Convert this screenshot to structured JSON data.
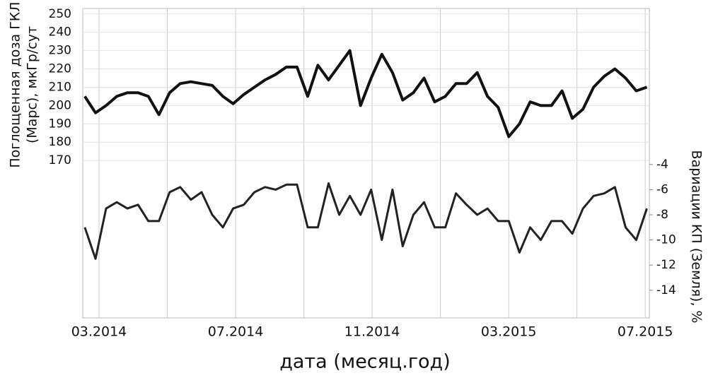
{
  "chart_data": {
    "type": "line",
    "y_label_lines": [
      "Поглощенная доза ГКЛ",
      "(Марс), мкГр/сут"
    ],
    "y2_label": "Вариации КП (Земля), %",
    "x_label": "дата (месяц.год)",
    "x": [
      2014.132,
      2014.158,
      2014.184,
      2014.21,
      2014.236,
      2014.262,
      2014.287,
      2014.313,
      2014.339,
      2014.365,
      2014.391,
      2014.417,
      2014.443,
      2014.469,
      2014.494,
      2014.52,
      2014.546,
      2014.572,
      2014.598,
      2014.624,
      2014.65,
      2014.676,
      2014.701,
      2014.727,
      2014.753,
      2014.779,
      2014.805,
      2014.831,
      2014.857,
      2014.883,
      2014.908,
      2014.934,
      2014.96,
      2014.986,
      2015.012,
      2015.038,
      2015.064,
      2015.09,
      2015.115,
      2015.141,
      2015.167,
      2015.193,
      2015.219,
      2015.245,
      2015.271,
      2015.297,
      2015.322,
      2015.348,
      2015.374,
      2015.4,
      2015.426,
      2015.452,
      2015.478,
      2015.504
    ],
    "series": [
      {
        "color": "#111111",
        "values": [
          205,
          196,
          200,
          205,
          207,
          207,
          205,
          195,
          207,
          212,
          213,
          212,
          211,
          205,
          201,
          206,
          210,
          214,
          217,
          221,
          221,
          205,
          222,
          214,
          222,
          230,
          200,
          215,
          228,
          218,
          203,
          207,
          215,
          202,
          205,
          212,
          212,
          218,
          205,
          199,
          183,
          190,
          202,
          200,
          200,
          208,
          193,
          198,
          210,
          216,
          220,
          215,
          208,
          210
        ]
      },
      {
        "color": "#222222",
        "axis": "y2",
        "values": [
          -9,
          -11.5,
          -7.5,
          -7,
          -7.5,
          -7.2,
          -8.5,
          -8.5,
          -6.2,
          -5.8,
          -6.8,
          -6.2,
          -8,
          -9,
          -7.5,
          -7.2,
          -6.2,
          -5.8,
          -6,
          -5.6,
          -5.6,
          -9,
          -9,
          -5.5,
          -8,
          -6.5,
          -8,
          -6,
          -10,
          -6,
          -10.5,
          -8,
          -7,
          -9,
          -9,
          -6.3,
          -7.2,
          -8,
          -7.5,
          -8.5,
          -8.5,
          -11,
          -9,
          -10,
          -8.5,
          -8.5,
          -9.5,
          -7.5,
          -6.5,
          -6.3,
          -5.8,
          -9,
          -10,
          -7.5
        ]
      }
    ],
    "xlim": [
      2014.127,
      2015.51
    ],
    "xticks": [
      {
        "value": 2014.1667,
        "label": "03.2014"
      },
      {
        "value": 2014.3333,
        "label": null
      },
      {
        "value": 2014.5,
        "label": "07.2014"
      },
      {
        "value": 2014.6667,
        "label": null
      },
      {
        "value": 2014.8333,
        "label": "11.2014"
      },
      {
        "value": 2015.0,
        "label": null
      },
      {
        "value": 2015.1667,
        "label": "03.2015"
      },
      {
        "value": 2015.3333,
        "label": null
      },
      {
        "value": 2015.5,
        "label": "07.2015"
      }
    ],
    "ylim": [
      84,
      253
    ],
    "yticks": [
      170,
      180,
      190,
      200,
      210,
      220,
      230,
      240,
      250
    ],
    "y2lim": [
      -16.2,
      8.4
    ],
    "y2ticks": [
      -4,
      -6,
      -8,
      -10,
      -12,
      -14
    ],
    "grid": true
  }
}
